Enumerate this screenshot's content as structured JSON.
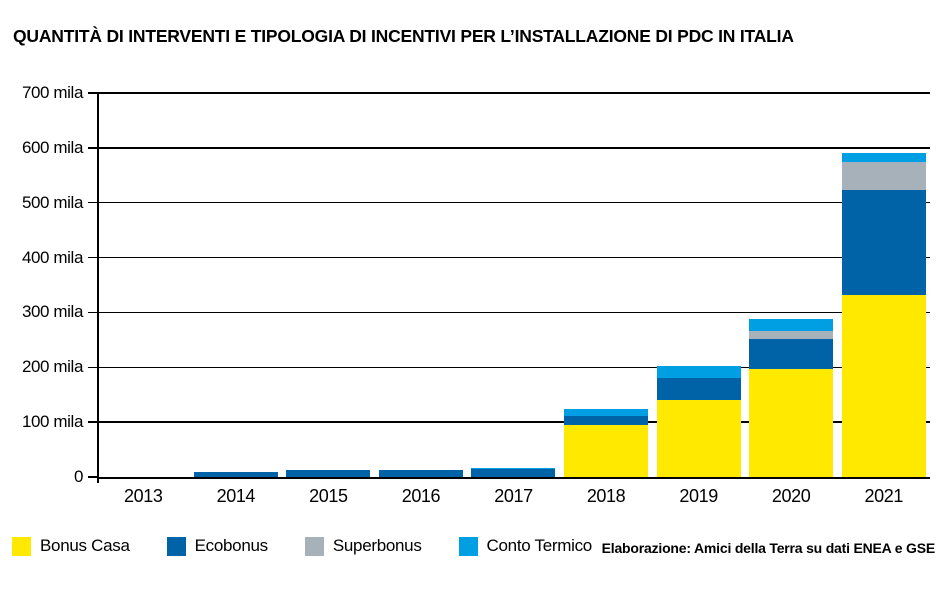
{
  "title": "QUANTITÀ DI INTERVENTI E TIPOLOGIA DI INCENTIVI PER L’INSTALLAZIONE DI PDC IN ITALIA",
  "attribution": "Elaborazione: Amici della Terra su dati ENEA e GSE",
  "colors": {
    "bonus_casa": "#FFE900",
    "ecobonus": "#0063A7",
    "superbonus": "#A6B1BA",
    "conto_termico": "#009FE3",
    "axis": "#000000",
    "background": "#FFFFFF"
  },
  "chart_data": {
    "type": "bar",
    "stacked": true,
    "title": "QUANTITÀ DI INTERVENTI E TIPOLOGIA DI INCENTIVI PER L’INSTALLAZIONE DI PDC IN ITALIA",
    "unit": "mila (thousands of interventions)",
    "categories": [
      "2013",
      "2014",
      "2015",
      "2016",
      "2017",
      "2018",
      "2019",
      "2020",
      "2021"
    ],
    "series": [
      {
        "name": "Bonus Casa",
        "color": "#FFE900",
        "values": [
          0,
          0,
          0,
          0,
          0,
          95,
          140,
          197,
          331
        ]
      },
      {
        "name": "Ecobonus",
        "color": "#0063A7",
        "values": [
          0,
          10,
          12,
          12,
          14,
          17,
          40,
          54,
          193
        ]
      },
      {
        "name": "Superbonus",
        "color": "#A6B1BA",
        "values": [
          0,
          0,
          0,
          0,
          0,
          0,
          0,
          15,
          51
        ]
      },
      {
        "name": "Conto Termico",
        "color": "#009FE3",
        "values": [
          0,
          0,
          0,
          0,
          3,
          12,
          22,
          23,
          15
        ]
      }
    ],
    "totals": [
      0,
      10,
      12,
      12,
      17,
      124,
      202,
      289,
      590
    ],
    "xlabel": "",
    "ylabel": "",
    "ylim": [
      0,
      700
    ],
    "ytick_step": 100,
    "ytick_labels": [
      "0",
      "100 mila",
      "200 mila",
      "300 mila",
      "400 mila",
      "500 mila",
      "600 mila",
      "700 mila"
    ],
    "grid": "horizontal",
    "legend_position": "bottom-left"
  }
}
